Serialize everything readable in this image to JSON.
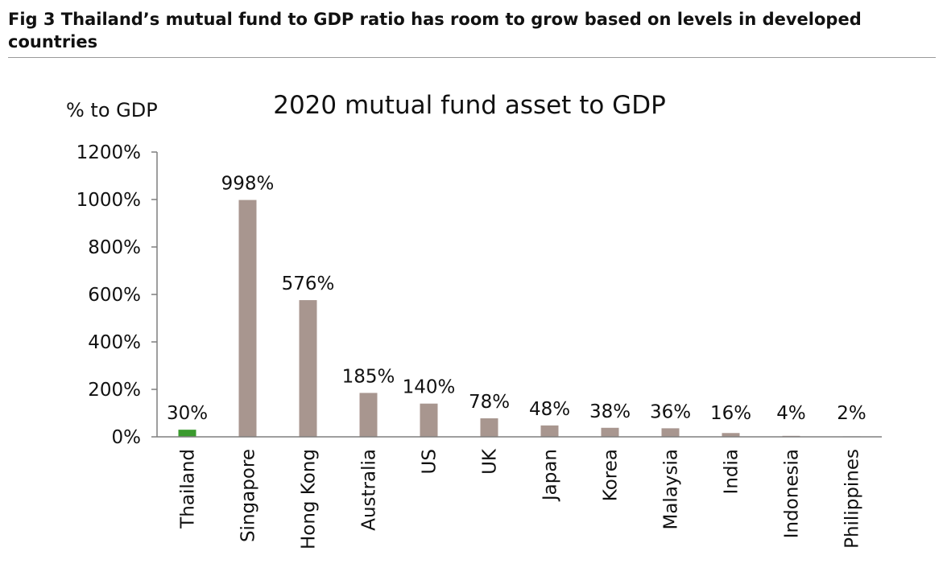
{
  "figure": {
    "title": "Fig 3  Thailand’s mutual fund to GDP ratio has room to grow based on levels in developed countries"
  },
  "chart_data": {
    "type": "bar",
    "title": "2020 mutual fund asset to GDP",
    "xlabel": "",
    "ylabel": "% to GDP",
    "ylim": [
      0,
      1200
    ],
    "yticks": [
      "0%",
      "200%",
      "400%",
      "600%",
      "800%",
      "1000%",
      "1200%"
    ],
    "ytick_values": [
      0,
      200,
      400,
      600,
      800,
      1000,
      1200
    ],
    "grid": false,
    "legend": "none",
    "categories": [
      "Thailand",
      "Singapore",
      "Hong Kong",
      "Australia",
      "US",
      "UK",
      "Japan",
      "Korea",
      "Malaysia",
      "India",
      "Indonesia",
      "Philippines"
    ],
    "values": [
      30,
      998,
      576,
      185,
      140,
      78,
      48,
      38,
      36,
      16,
      4,
      2
    ],
    "data_labels": [
      "30%",
      "998%",
      "576%",
      "185%",
      "140%",
      "78%",
      "48%",
      "38%",
      "36%",
      "16%",
      "4%",
      "2%"
    ],
    "colors": {
      "highlight": "#3a9a2e",
      "default": "#a8968f",
      "axis": "#7f7f7f"
    },
    "highlight_index": 0
  }
}
